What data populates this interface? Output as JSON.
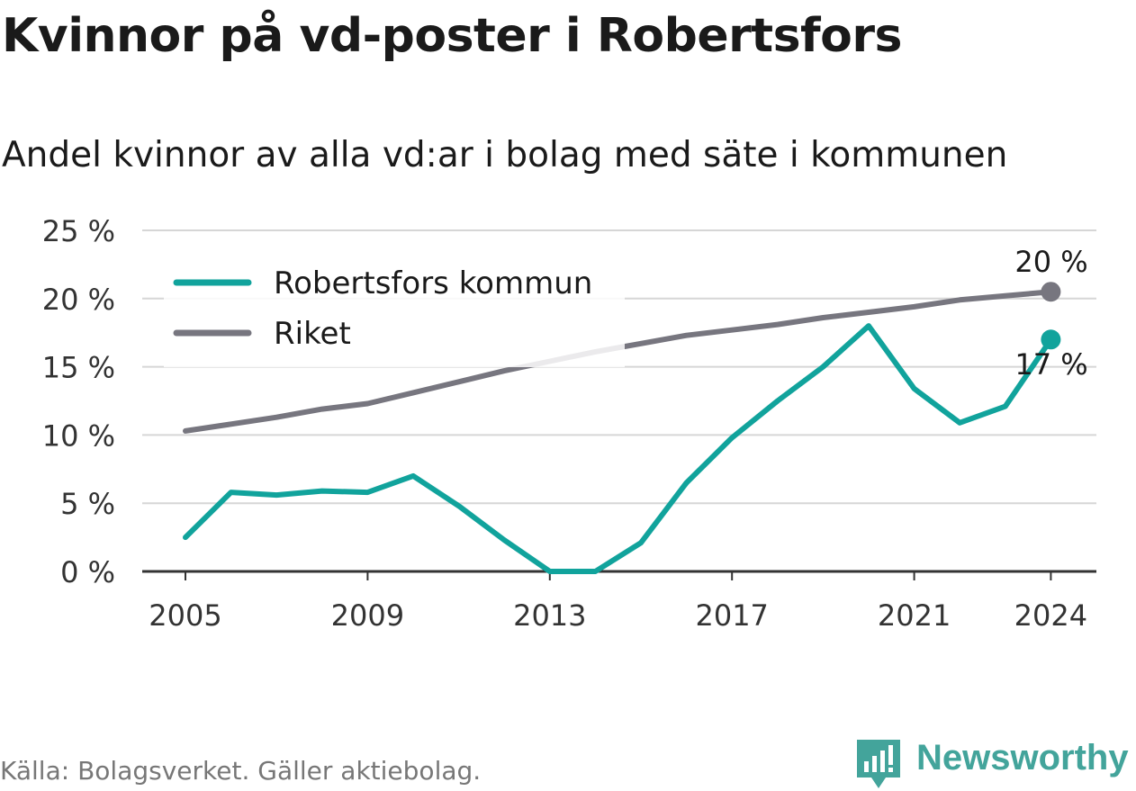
{
  "title": "Kvinnor på vd-poster i Robertsfors",
  "subtitle": "Andel kvinnor av alla vd:ar i bolag med säte i kommunen",
  "footer": "Källa: Bolagsverket. Gäller aktiebolag.",
  "brand": "Newsworthy",
  "colors": {
    "kommun": "#11a39c",
    "riket": "#77767f",
    "grid": "#d6d6d6",
    "axis": "#333333",
    "brand": "#43a49b"
  },
  "chart_data": {
    "type": "line",
    "x": [
      2005,
      2006,
      2007,
      2008,
      2009,
      2010,
      2011,
      2012,
      2013,
      2014,
      2015,
      2016,
      2017,
      2018,
      2019,
      2020,
      2021,
      2022,
      2023,
      2024
    ],
    "xticks": [
      "2005",
      "2009",
      "2013",
      "2017",
      "2021",
      "2024"
    ],
    "yticks": [
      "0 %",
      "5 %",
      "10 %",
      "15 %",
      "20 %",
      "25 %"
    ],
    "ylim": [
      0,
      25
    ],
    "xlim": [
      2005,
      2025
    ],
    "grid": true,
    "legend": "top-left",
    "series": [
      {
        "name": "Robertsfors kommun",
        "color_key": "kommun",
        "values": [
          2.5,
          5.8,
          5.6,
          5.9,
          5.8,
          7.0,
          4.8,
          2.3,
          0.0,
          0.0,
          2.1,
          6.5,
          9.8,
          12.5,
          15.0,
          18.0,
          13.4,
          10.9,
          12.1,
          17.0
        ],
        "end_label": "17 %"
      },
      {
        "name": "Riket",
        "color_key": "riket",
        "values": [
          10.3,
          10.8,
          11.3,
          11.9,
          12.3,
          13.1,
          13.9,
          14.7,
          15.4,
          16.1,
          16.7,
          17.3,
          17.7,
          18.1,
          18.6,
          19.0,
          19.4,
          19.9,
          20.2,
          20.5
        ],
        "end_label": "20 %"
      }
    ]
  }
}
